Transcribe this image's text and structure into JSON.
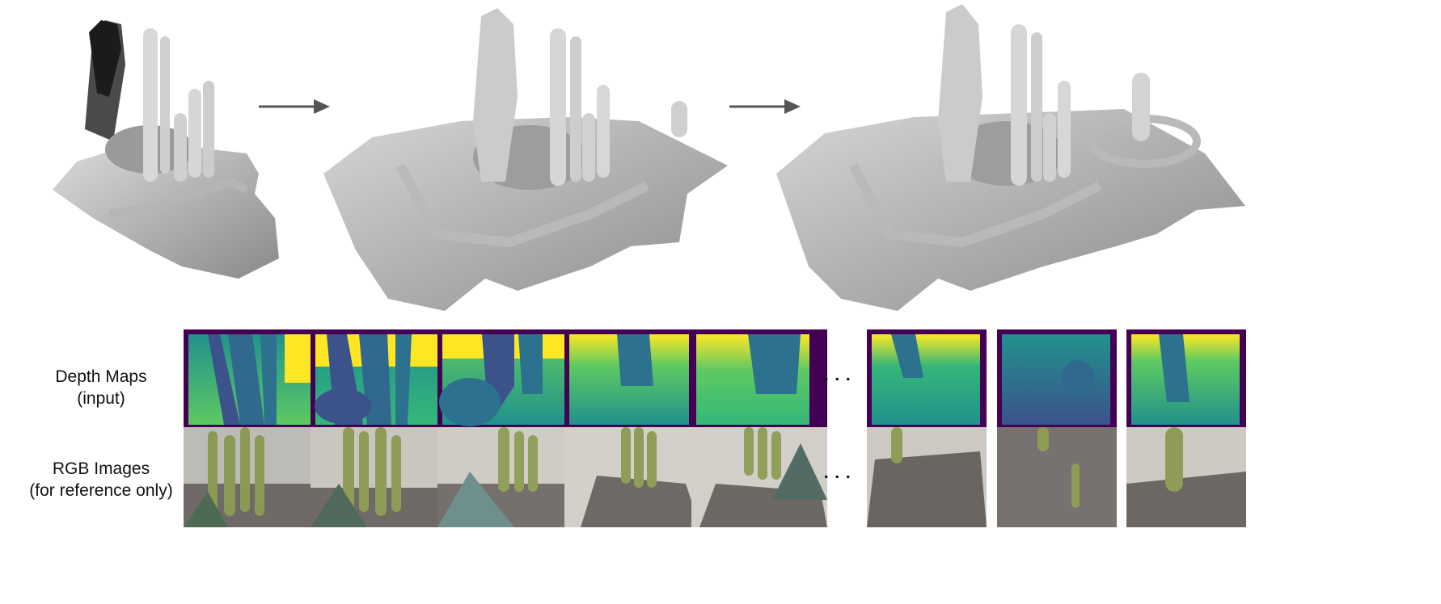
{
  "rows": {
    "depth_label": [
      "Depth Maps",
      "(input)"
    ],
    "rgb_label": [
      "RGB Images",
      "(for reference only)"
    ]
  },
  "ellipsis": "...",
  "colors": {
    "mesh_fill": "#c9c9c9",
    "mesh_shadow": "#8f8f8f",
    "arrow": "#555555",
    "viridis_dark": "#440154",
    "viridis_blue": "#3b528b",
    "viridis_teal": "#21918c",
    "viridis_green": "#5ec962",
    "viridis_yellow": "#fde725"
  },
  "mesh_icons": [
    "reconstruction-step-1",
    "reconstruction-step-2",
    "reconstruction-step-3"
  ],
  "depth_frame_count": 8,
  "rgb_frame_count": 8
}
